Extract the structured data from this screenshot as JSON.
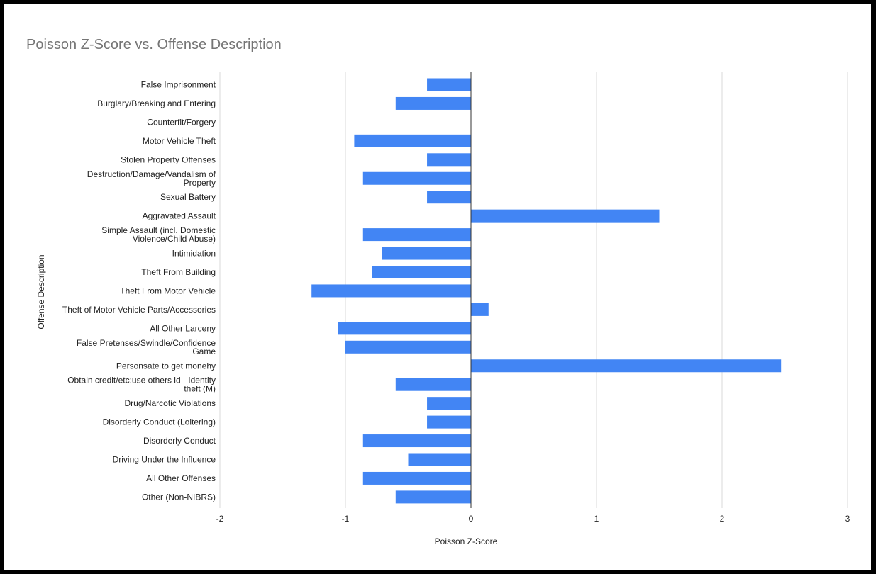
{
  "chart_data": {
    "type": "bar",
    "orientation": "horizontal",
    "title": "Poisson Z-Score vs. Offense Description",
    "xlabel": "Poisson Z-Score",
    "ylabel": "Offense Description",
    "xlim": [
      -2,
      3
    ],
    "xticks": [
      "-2",
      "-1",
      "0",
      "1",
      "2",
      "3"
    ],
    "grid": true,
    "legend": "none",
    "bar_color": "#4285f4",
    "categories": [
      "False Imprisonment",
      "Burglary/Breaking and Entering",
      "Counterfit/Forgery",
      "Motor Vehicle Theft",
      "Stolen Property Offenses",
      "Destruction/Damage/Vandalism of Property",
      "Sexual Battery",
      "Aggravated Assault",
      "Simple Assault (incl. Domestic Violence/Child Abuse)",
      "Intimidation",
      "Theft From Building",
      "Theft From Motor Vehicle",
      "Theft of Motor Vehicle Parts/Accessories",
      "All Other Larceny",
      "False Pretenses/Swindle/Confidence Game",
      "Personsate to get monehy",
      "Obtain credit/etc:use others id - Identity theft (M)",
      "Drug/Narcotic Violations",
      "Disorderly Conduct (Loitering)",
      "Disorderly Conduct",
      "Driving Under the Influence",
      "All Other Offenses",
      "Other (Non-NIBRS)"
    ],
    "category_lines": [
      [
        "False Imprisonment"
      ],
      [
        "Burglary/Breaking and Entering"
      ],
      [
        "Counterfit/Forgery"
      ],
      [
        "Motor Vehicle Theft"
      ],
      [
        "Stolen Property Offenses"
      ],
      [
        "Destruction/Damage/Vandalism of",
        "Property"
      ],
      [
        "Sexual Battery"
      ],
      [
        "Aggravated Assault"
      ],
      [
        "Simple Assault (incl. Domestic",
        "Violence/Child Abuse)"
      ],
      [
        "Intimidation"
      ],
      [
        "Theft From Building"
      ],
      [
        "Theft From Motor Vehicle"
      ],
      [
        "Theft of Motor Vehicle Parts/Accessories"
      ],
      [
        "All Other Larceny"
      ],
      [
        "False Pretenses/Swindle/Confidence",
        "Game"
      ],
      [
        "Personsate to get monehy"
      ],
      [
        "Obtain credit/etc:use others id - Identity",
        "theft (M)"
      ],
      [
        "Drug/Narcotic Violations"
      ],
      [
        "Disorderly Conduct (Loitering)"
      ],
      [
        "Disorderly Conduct"
      ],
      [
        "Driving Under the Influence"
      ],
      [
        "All Other Offenses"
      ],
      [
        "Other (Non-NIBRS)"
      ]
    ],
    "values": [
      -0.35,
      -0.6,
      0,
      -0.93,
      -0.35,
      -0.86,
      -0.35,
      1.5,
      -0.86,
      -0.71,
      -0.79,
      -1.27,
      0.14,
      -1.06,
      -1.0,
      2.47,
      -0.6,
      -0.35,
      -0.35,
      -0.86,
      -0.5,
      -0.86,
      -0.6
    ]
  }
}
